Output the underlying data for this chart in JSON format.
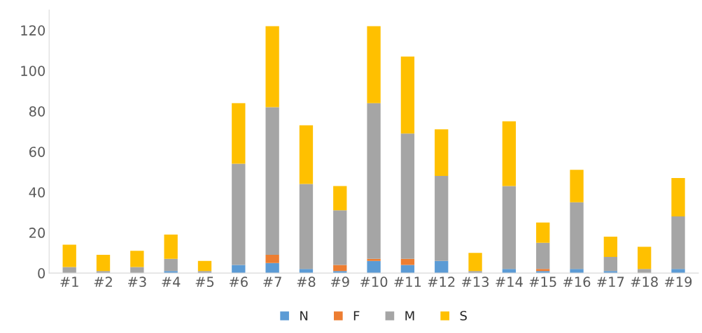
{
  "chart_data": {
    "type": "bar",
    "stacked": true,
    "categories": [
      "#1",
      "#2",
      "#3",
      "#4",
      "#5",
      "#6",
      "#7",
      "#8",
      "#9",
      "#10",
      "#11",
      "#12",
      "#13",
      "#14",
      "#15",
      "#16",
      "#17",
      "#18",
      "#19"
    ],
    "series": [
      {
        "name": "N",
        "color": "#5b9bd5",
        "values": [
          0,
          0,
          0,
          1,
          0,
          4,
          5,
          2,
          1,
          6,
          4,
          6,
          0,
          2,
          1,
          2,
          1,
          0,
          2
        ]
      },
      {
        "name": "F",
        "color": "#ed7d31",
        "values": [
          0,
          0,
          0,
          0,
          0,
          0,
          4,
          0,
          3,
          1,
          3,
          0,
          0,
          0,
          1,
          0,
          0,
          0,
          0
        ]
      },
      {
        "name": "M",
        "color": "#a5a5a5",
        "values": [
          3,
          1,
          3,
          6,
          1,
          50,
          73,
          42,
          27,
          77,
          62,
          42,
          1,
          41,
          13,
          33,
          7,
          2,
          26
        ]
      },
      {
        "name": "S",
        "color": "#ffc000",
        "values": [
          11,
          8,
          8,
          12,
          5,
          30,
          40,
          29,
          12,
          38,
          38,
          23,
          9,
          32,
          10,
          16,
          10,
          11,
          19
        ]
      }
    ],
    "ylim": [
      0,
      130
    ],
    "yticks": [
      0,
      20,
      40,
      60,
      80,
      100,
      120
    ],
    "grid": false,
    "legend": "bottom"
  }
}
